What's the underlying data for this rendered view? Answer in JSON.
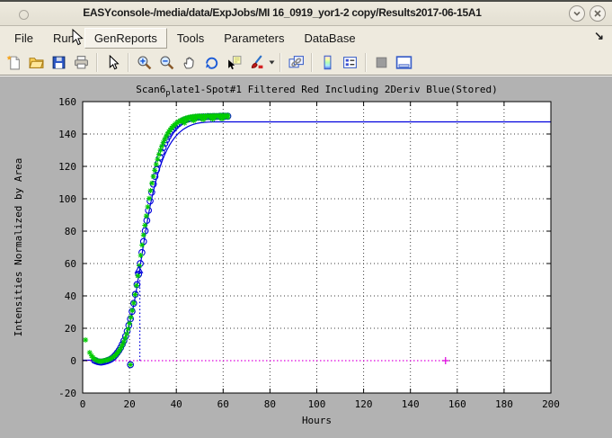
{
  "window": {
    "title": "EASYconsole-/media/data/ExpJobs/MI 16_0919_yor1-2 copy/Results2017-06-15A1",
    "controls": [
      {
        "name": "collapse-button",
        "icon": "chevron-down-icon"
      },
      {
        "name": "close-button",
        "icon": "close-icon"
      }
    ]
  },
  "menubar": {
    "items": [
      {
        "label": "File"
      },
      {
        "label": "Run"
      },
      {
        "label": "GenReports",
        "highlighted": true
      },
      {
        "label": "Tools"
      },
      {
        "label": "Parameters"
      },
      {
        "label": "DataBase"
      }
    ],
    "overflow_arrow": "↘"
  },
  "toolbar": {
    "items": [
      "new-figure",
      "open-file",
      "save-figure",
      "print-figure",
      "edit-plot",
      "zoom-in",
      "zoom-out",
      "pan",
      "rotate-3d",
      "data-cursor",
      "brush-data",
      "brush-dropdown",
      "link-plots",
      "insert-colorbar",
      "insert-legend",
      "hide-plot-tools",
      "show-plot-tools"
    ]
  },
  "chart_data": {
    "type": "line",
    "title_parts": {
      "prefix": "Scan6",
      "subscript": "p",
      "rest": "late1-Spot#1 Filtered Red Including 2Deriv Blue(Stored)"
    },
    "title_plain": "Scan6_plate1-Spot#1 Filtered Red Including 2Deriv Blue(Stored)",
    "xlabel": "Hours",
    "ylabel": "Intensities Normalized by Area",
    "xlim": [
      0,
      200
    ],
    "ylim": [
      -20,
      160
    ],
    "xticks": [
      0,
      20,
      40,
      60,
      80,
      100,
      120,
      140,
      160,
      180,
      200
    ],
    "yticks": [
      -20,
      0,
      20,
      40,
      60,
      80,
      100,
      120,
      140,
      160
    ],
    "grid": true,
    "legend": "none",
    "colors": {
      "fit_blue": "#0000dd",
      "raw_green": "#00cc00",
      "baseline_magenta": "#dd00dd",
      "axis": "#000000",
      "figure_bg": "#b2b2b2",
      "plot_bg": "#ffffff"
    },
    "series": [
      {
        "name": "fit-curve-blue",
        "type": "line",
        "color": "#0000dd",
        "points": [
          [
            0,
            0.3
          ],
          [
            4,
            0.3
          ],
          [
            5,
            0.1
          ],
          [
            6,
            -0.3
          ],
          [
            7,
            -0.7
          ],
          [
            8,
            -0.9
          ],
          [
            9,
            -0.7
          ],
          [
            10,
            -0.4
          ],
          [
            11,
            0.1
          ],
          [
            12,
            0.8
          ],
          [
            13,
            1.9
          ],
          [
            14,
            3.2
          ],
          [
            15,
            5
          ],
          [
            16,
            7.2
          ],
          [
            17,
            9.9
          ],
          [
            18,
            13.3
          ],
          [
            19,
            17.5
          ],
          [
            20,
            22.5
          ],
          [
            21,
            28.6
          ],
          [
            22,
            35.8
          ],
          [
            23,
            44
          ],
          [
            24,
            53
          ],
          [
            25,
            62.4
          ],
          [
            26,
            71.8
          ],
          [
            27,
            80.8
          ],
          [
            28,
            89.2
          ],
          [
            29,
            96.8
          ],
          [
            30,
            103.6
          ],
          [
            31,
            109.6
          ],
          [
            32,
            114.9
          ],
          [
            33,
            119.5
          ],
          [
            34,
            123.6
          ],
          [
            35,
            127.1
          ],
          [
            36,
            130.2
          ],
          [
            37,
            132.9
          ],
          [
            38,
            135.2
          ],
          [
            39,
            137.2
          ],
          [
            40,
            139
          ],
          [
            41,
            140.5
          ],
          [
            42,
            141.8
          ],
          [
            43,
            142.9
          ],
          [
            44,
            143.8
          ],
          [
            45,
            144.6
          ],
          [
            46,
            145.2
          ],
          [
            47,
            145.8
          ],
          [
            48,
            146.2
          ],
          [
            49,
            146.6
          ],
          [
            50,
            146.9
          ],
          [
            52,
            147.2
          ],
          [
            54,
            147.4
          ],
          [
            56,
            147.5
          ],
          [
            60,
            147.5
          ],
          [
            200,
            147.5
          ]
        ]
      },
      {
        "name": "baseline-zero-line",
        "type": "line",
        "style": "dotted",
        "color": "#dd00dd",
        "points": [
          [
            0,
            0
          ],
          [
            155,
            0
          ]
        ]
      },
      {
        "name": "lag-marker-vline",
        "type": "line",
        "style": "dotted",
        "color": "#0000dd",
        "points": [
          [
            24.4,
            0
          ],
          [
            24.4,
            56
          ]
        ]
      },
      {
        "name": "filtered-data-circles",
        "type": "scatter",
        "marker": "circle",
        "color": "#0000dd",
        "points": [
          [
            5,
            0.2
          ],
          [
            5.7,
            -0.2
          ],
          [
            6.4,
            -0.6
          ],
          [
            7.1,
            -0.8
          ],
          [
            7.8,
            -0.9
          ],
          [
            8.5,
            -0.8
          ],
          [
            9.2,
            -0.6
          ],
          [
            9.9,
            -0.3
          ],
          [
            10.6,
            0
          ],
          [
            11.3,
            0.4
          ],
          [
            12,
            0.9
          ],
          [
            12.7,
            1.6
          ],
          [
            13.4,
            2.5
          ],
          [
            14.1,
            3.6
          ],
          [
            14.8,
            4.9
          ],
          [
            15.5,
            6.3
          ],
          [
            16.2,
            8
          ],
          [
            16.9,
            10
          ],
          [
            17.6,
            12.3
          ],
          [
            18.3,
            15
          ],
          [
            19,
            18.2
          ],
          [
            19.7,
            21.8
          ],
          [
            20.4,
            -2.5
          ],
          [
            20.4,
            25.8
          ],
          [
            21.1,
            30.4
          ],
          [
            21.8,
            35.4
          ],
          [
            22.5,
            41
          ],
          [
            23.2,
            47
          ],
          [
            23.9,
            53.4
          ],
          [
            24.6,
            60
          ],
          [
            25.3,
            66.8
          ],
          [
            26,
            73.6
          ],
          [
            26.7,
            80.2
          ],
          [
            27.4,
            86.6
          ],
          [
            28.1,
            92.8
          ],
          [
            28.8,
            98.6
          ],
          [
            29.5,
            104
          ],
          [
            30.2,
            109
          ],
          [
            30.9,
            113.8
          ],
          [
            31.6,
            118
          ],
          [
            32.3,
            122
          ],
          [
            33,
            125.6
          ],
          [
            33.7,
            128.8
          ],
          [
            34.4,
            131.6
          ],
          [
            35.1,
            134.2
          ],
          [
            35.8,
            136.4
          ],
          [
            36.5,
            138.4
          ],
          [
            37.2,
            140.2
          ],
          [
            37.9,
            141.8
          ],
          [
            38.6,
            143
          ],
          [
            39.3,
            144.2
          ],
          [
            40,
            145.2
          ],
          [
            41,
            146.4
          ],
          [
            42,
            147.4
          ],
          [
            43,
            148.2
          ],
          [
            44,
            148.8
          ],
          [
            45,
            149.2
          ],
          [
            46,
            149.6
          ],
          [
            47,
            149.9
          ],
          [
            48,
            150.1
          ],
          [
            49,
            150.3
          ],
          [
            50,
            150.4
          ],
          [
            51.2,
            150.5
          ],
          [
            52.4,
            150.6
          ],
          [
            53.6,
            150.7
          ],
          [
            54.8,
            150.7
          ],
          [
            56,
            150.8
          ],
          [
            57.2,
            150.8
          ],
          [
            58.4,
            150.9
          ],
          [
            59.6,
            150.9
          ],
          [
            60.8,
            150.9
          ],
          [
            62,
            151
          ]
        ]
      },
      {
        "name": "raw-data-stars",
        "type": "scatter",
        "marker": "asterisk",
        "color": "#00cc00",
        "points": [
          [
            1.2,
            12.8
          ],
          [
            3,
            5
          ],
          [
            3.8,
            3
          ],
          [
            4.4,
            1.8
          ],
          [
            5,
            1
          ],
          [
            5.6,
            0.5
          ],
          [
            6.2,
            0
          ],
          [
            6.8,
            -0.3
          ],
          [
            7.4,
            -0.4
          ],
          [
            8,
            -0.4
          ],
          [
            8.6,
            -0.2
          ],
          [
            9.2,
            0
          ],
          [
            9.8,
            0.2
          ],
          [
            10.4,
            0.4
          ],
          [
            11,
            0.7
          ],
          [
            11.6,
            1
          ],
          [
            12.2,
            1.4
          ],
          [
            12.8,
            2
          ],
          [
            13.4,
            2.6
          ],
          [
            14,
            3.4
          ],
          [
            14.6,
            4.3
          ],
          [
            15.2,
            5.4
          ],
          [
            15.8,
            6.6
          ],
          [
            16.4,
            8
          ],
          [
            17,
            9.7
          ],
          [
            17.6,
            11.7
          ],
          [
            18.2,
            14
          ],
          [
            18.8,
            16.6
          ],
          [
            19.4,
            19.6
          ],
          [
            20,
            23
          ],
          [
            20.4,
            -2.5
          ],
          [
            20.6,
            26.8
          ],
          [
            21.2,
            31
          ],
          [
            21.8,
            35.6
          ],
          [
            22.4,
            40.8
          ],
          [
            23,
            46.4
          ],
          [
            23.6,
            52.4
          ],
          [
            24.2,
            58.6
          ],
          [
            24.8,
            65
          ],
          [
            25.4,
            71.4
          ],
          [
            26,
            77.6
          ],
          [
            26.6,
            83.6
          ],
          [
            27.2,
            89.4
          ],
          [
            27.8,
            95
          ],
          [
            28.4,
            100.2
          ],
          [
            29,
            105
          ],
          [
            29.6,
            109.6
          ],
          [
            30.2,
            113.8
          ],
          [
            30.8,
            117.6
          ],
          [
            31.4,
            121.2
          ],
          [
            32,
            124.4
          ],
          [
            32.6,
            127.4
          ],
          [
            33.2,
            130
          ],
          [
            33.8,
            132.4
          ],
          [
            34.4,
            134.6
          ],
          [
            35,
            136.6
          ],
          [
            35.6,
            138.4
          ],
          [
            36.2,
            140
          ],
          [
            36.8,
            141.4
          ],
          [
            37.4,
            142.6
          ],
          [
            38,
            143.8
          ],
          [
            38.6,
            144.8
          ],
          [
            39.2,
            145.6
          ],
          [
            39.8,
            146.4
          ],
          [
            40.4,
            147
          ],
          [
            41,
            147.6
          ],
          [
            41.6,
            148.2
          ],
          [
            42.2,
            148.6
          ],
          [
            42.8,
            149
          ],
          [
            43.4,
            149.4
          ],
          [
            44,
            149.7
          ],
          [
            44.6,
            150
          ],
          [
            45.2,
            150.2
          ],
          [
            45.8,
            150.4
          ],
          [
            46.4,
            150.5
          ],
          [
            47,
            150.7
          ],
          [
            47.6,
            150.8
          ],
          [
            48.2,
            150.9
          ],
          [
            48.8,
            151
          ],
          [
            49.4,
            151
          ],
          [
            50,
            151.1
          ],
          [
            50.8,
            151.1
          ],
          [
            51.6,
            151.2
          ],
          [
            52.4,
            151.2
          ],
          [
            53.2,
            151.3
          ],
          [
            54,
            151.3
          ],
          [
            54.8,
            151.3
          ],
          [
            55.6,
            151.4
          ],
          [
            56.4,
            151.4
          ],
          [
            57.2,
            151.4
          ],
          [
            58,
            151.4
          ],
          [
            58.8,
            151.5
          ],
          [
            59.6,
            151.5
          ],
          [
            60.4,
            151.5
          ],
          [
            61.2,
            151.5
          ],
          [
            62,
            151.6
          ],
          [
            42.5,
            147.6
          ],
          [
            44.5,
            148.3
          ],
          [
            46.5,
            149
          ],
          [
            48.5,
            149.4
          ],
          [
            50.5,
            149.7
          ],
          [
            52.5,
            149.9
          ],
          [
            54.5,
            150
          ],
          [
            56.5,
            150.1
          ],
          [
            58.5,
            150.2
          ],
          [
            60.5,
            150.3
          ],
          [
            62,
            150.4
          ],
          [
            43.5,
            146.8
          ],
          [
            47.5,
            148.2
          ],
          [
            51.5,
            148.9
          ],
          [
            55.5,
            149.2
          ],
          [
            59.5,
            149.4
          ]
        ]
      },
      {
        "name": "baseline-end-plus",
        "type": "scatter",
        "marker": "plus",
        "color": "#dd00dd",
        "points": [
          [
            155,
            0
          ]
        ]
      },
      {
        "name": "lag-marker-triangle",
        "type": "scatter",
        "marker": "triangle",
        "color": "#0000dd",
        "points": [
          [
            24,
            56
          ]
        ]
      }
    ]
  }
}
